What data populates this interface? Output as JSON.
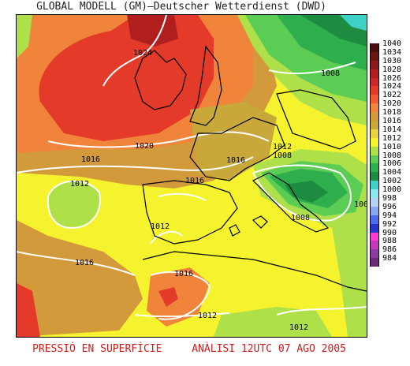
{
  "title": "GLOBAL MODELL (GM)—Deutscher Wetterdienst (DWD)",
  "footer": {
    "left": "PRESSIÓ EN SUPERFÍCIE",
    "right": "ANÀLISI 12UTC 07 AGO 2005"
  },
  "isobar_labels": [
    "1024",
    "1008",
    "1020",
    "1016",
    "1012",
    "1008",
    "1016",
    "1012",
    "1016",
    "1008",
    "100",
    "1012",
    "1016",
    "1016",
    "1012",
    "1012"
  ],
  "legend": [
    {
      "label": "1040",
      "color": "#4a0f0f"
    },
    {
      "label": "1034",
      "color": "#6b1414"
    },
    {
      "label": "1030",
      "color": "#8c1a1a"
    },
    {
      "label": "1028",
      "color": "#b01e1e"
    },
    {
      "label": "1026",
      "color": "#cc2828"
    },
    {
      "label": "1024",
      "color": "#e33a2a"
    },
    {
      "label": "1022",
      "color": "#ef5a30"
    },
    {
      "label": "1020",
      "color": "#f0843a"
    },
    {
      "label": "1018",
      "color": "#d39a3c"
    },
    {
      "label": "1016",
      "color": "#c8a83a"
    },
    {
      "label": "1014",
      "color": "#e7d33a"
    },
    {
      "label": "1012",
      "color": "#f5f22e"
    },
    {
      "label": "1010",
      "color": "#aee04a"
    },
    {
      "label": "1008",
      "color": "#5ccd54"
    },
    {
      "label": "1006",
      "color": "#2fae4e"
    },
    {
      "label": "1004",
      "color": "#1e8c40"
    },
    {
      "label": "1002",
      "color": "#3fd0c8"
    },
    {
      "label": "1000",
      "color": "#8ee6ee"
    },
    {
      "label": "998",
      "color": "#b6d2f2"
    },
    {
      "label": "996",
      "color": "#8aa6f0"
    },
    {
      "label": "994",
      "color": "#4f6ce8"
    },
    {
      "label": "992",
      "color": "#2a36c8"
    },
    {
      "label": "990",
      "color": "#ff3ad0"
    },
    {
      "label": "988",
      "color": "#c23ab8"
    },
    {
      "label": "986",
      "color": "#8e3a9e"
    },
    {
      "label": "984",
      "color": "#6a2a7a"
    }
  ]
}
